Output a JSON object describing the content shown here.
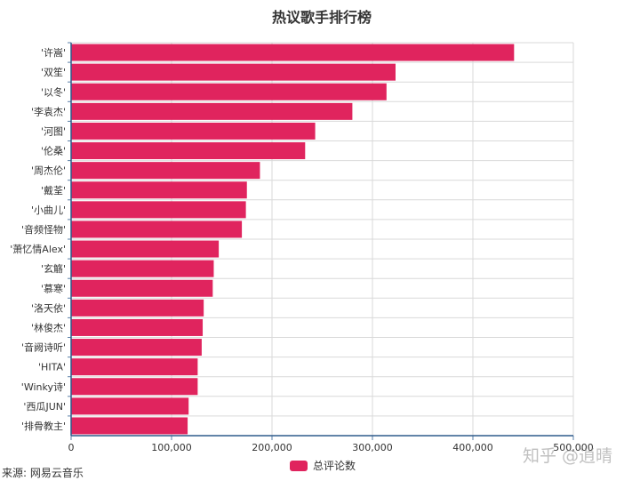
{
  "source_note": "来源: 网易云音乐",
  "watermark": "知乎 @逍晴",
  "chart_data": {
    "type": "bar",
    "orientation": "horizontal",
    "title": "热议歌手排行榜",
    "categories": [
      "'许嵩'",
      "'双笙'",
      "'以冬'",
      "'李袁杰'",
      "'河图'",
      "'伦桑'",
      "'周杰伦'",
      "'戴荃'",
      "'小曲儿'",
      "'音频怪物'",
      "'萧忆情Alex'",
      "'玄觞'",
      "'慕寒'",
      "'洛天依'",
      "'林俊杰'",
      "'音阙诗听'",
      "'HITA'",
      "'Winky诗'",
      "'西瓜JUN'",
      "'排骨教主'"
    ],
    "series": [
      {
        "name": "总评论数",
        "values": [
          441000,
          323000,
          314000,
          280000,
          243000,
          233000,
          188000,
          175000,
          174000,
          170000,
          147000,
          142000,
          141000,
          132000,
          131000,
          130000,
          126000,
          126000,
          117000,
          116000
        ]
      }
    ],
    "xticks": [
      "0",
      "100,000",
      "200,000",
      "300,000",
      "400,000",
      "500,000"
    ],
    "xlim": [
      0,
      500000
    ],
    "xlabel": "",
    "ylabel": "",
    "grid": true,
    "legend_position": "bottom-center",
    "bar_color": "#E0245E"
  }
}
